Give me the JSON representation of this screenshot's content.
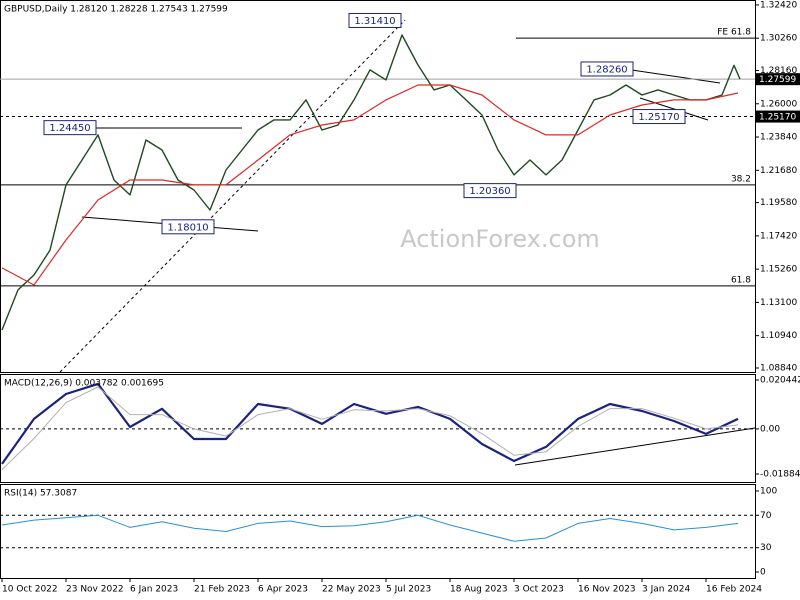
{
  "chart_data": [
    {
      "type": "line",
      "title": "GBPUSD,Daily  1.28120 1.28228 1.27543 1.27599",
      "watermark": "ActionForex.com",
      "xlim": [
        -1,
        376.5
      ],
      "ylim": [
        1.0858,
        1.3274
      ],
      "yticks": [
        {
          "value": 1.3242,
          "label": "1.32420"
        },
        {
          "value": 1.3026,
          "label": "1.30260"
        },
        {
          "value": 1.2816,
          "label": "1.28160"
        },
        {
          "value": 1.26,
          "label": "1.26000"
        },
        {
          "value": 1.2384,
          "label": "1.23840"
        },
        {
          "value": 1.2168,
          "label": "1.21680"
        },
        {
          "value": 1.1958,
          "label": "1.19580"
        },
        {
          "value": 1.1742,
          "label": "1.17420"
        },
        {
          "value": 1.1526,
          "label": "1.15260"
        },
        {
          "value": 1.131,
          "label": "1.13100"
        },
        {
          "value": 1.1094,
          "label": "1.10940"
        },
        {
          "value": 1.0884,
          "label": "1.08840"
        }
      ],
      "series": [
        {
          "color": "#1e4a22",
          "line_width": 1.4,
          "x": [
            0,
            8,
            16,
            24,
            32,
            40,
            48,
            56,
            64,
            72,
            80,
            88,
            96,
            104,
            112,
            120,
            128,
            136,
            144,
            152,
            160,
            168,
            176,
            184,
            192,
            200,
            208,
            216,
            224,
            232,
            240,
            248,
            256,
            264,
            272,
            280,
            288,
            296,
            304,
            312,
            320,
            328,
            336,
            344,
            352,
            360,
            366,
            369
          ],
          "values": [
            1.1131,
            1.1391,
            1.1488,
            1.165,
            1.2073,
            1.2235,
            1.2398,
            1.2105,
            1.2008,
            1.2365,
            1.23,
            1.2105,
            1.204,
            1.191,
            1.217,
            1.23,
            1.243,
            1.2495,
            1.2495,
            1.2625,
            1.243,
            1.2462,
            1.2625,
            1.282,
            1.2755,
            1.3047,
            1.2852,
            1.269,
            1.2722,
            1.2625,
            1.2527,
            1.23,
            1.2138,
            1.2235,
            1.2138,
            1.2235,
            1.243,
            1.2625,
            1.2657,
            1.2722,
            1.2657,
            1.269,
            1.2657,
            1.2625,
            1.2625,
            1.2657,
            1.285,
            1.276
          ]
        },
        {
          "color": "#e02828",
          "line_width": 1.2,
          "x": [
            0,
            16,
            32,
            48,
            64,
            80,
            96,
            112,
            128,
            144,
            160,
            176,
            192,
            208,
            224,
            240,
            256,
            272,
            288,
            304,
            320,
            336,
            352,
            368
          ],
          "values": [
            1.1534,
            1.1423,
            1.1715,
            1.1975,
            1.2105,
            1.2105,
            1.2073,
            1.2073,
            1.2235,
            1.2398,
            1.2462,
            1.2495,
            1.2625,
            1.2722,
            1.2722,
            1.2657,
            1.2495,
            1.2398,
            1.2398,
            1.2527,
            1.2592,
            1.2625,
            1.2625,
            1.267
          ]
        }
      ],
      "levels": [
        {
          "label": "FE 61.8",
          "value": 1.3026,
          "from": 257,
          "style": "solid",
          "color": "#000000"
        },
        {
          "label": "38.2",
          "value": 1.2073,
          "from": -1,
          "style": "solid",
          "color": "#000000"
        },
        {
          "label": "61.8",
          "value": 1.1417,
          "from": -1,
          "style": "solid",
          "color": "#000000"
        },
        {
          "value": 1.2517,
          "from": -1,
          "style": "dashed",
          "color": "#000000"
        },
        {
          "value": 1.27599,
          "from": -1,
          "style": "solid",
          "color": "#a0a0a0"
        }
      ],
      "price_labels": [
        {
          "label": "1.31410",
          "value": 1.3141,
          "x": 186.5
        },
        {
          "label": "1.24450",
          "value": 1.2445,
          "x": 34
        },
        {
          "label": "1.18010",
          "value": 1.1801,
          "x": 93
        },
        {
          "label": "1.20360",
          "value": 1.2036,
          "x": 244
        },
        {
          "label": "1.28260",
          "value": 1.2826,
          "x": 302.5
        },
        {
          "label": "1.25170",
          "value": 1.2517,
          "x": 328.5
        }
      ],
      "axis_marks": [
        {
          "value": 1.27599,
          "label": "1.27599"
        },
        {
          "value": 1.2517,
          "label": "1.25170"
        }
      ]
    },
    {
      "type": "line",
      "title": "MACD(12,26,9) 0.003782 0.001695",
      "xlim": [
        -1,
        376.5
      ],
      "ylim": [
        -0.02218,
        0.02295
      ],
      "yticks": [
        0.020442,
        {
          "value": 0,
          "label": "0.00"
        },
        -0.01884
      ],
      "series": [
        {
          "color": "#1a237e",
          "line_width": 2.2,
          "x": [
            0,
            16,
            32,
            48,
            64,
            80,
            96,
            112,
            128,
            144,
            160,
            176,
            192,
            208,
            224,
            240,
            256,
            272,
            288,
            304,
            320,
            336,
            352,
            368
          ],
          "values": [
            -0.0146,
            0.0042,
            0.0146,
            0.0188,
            0.0008,
            0.0084,
            -0.0042,
            -0.0042,
            0.0104,
            0.0084,
            0.0021,
            0.0104,
            0.0063,
            0.0092,
            0.0042,
            -0.0063,
            -0.0134,
            -0.0075,
            0.0042,
            0.0104,
            0.0075,
            0.0033,
            -0.0021,
            0.0042
          ]
        },
        {
          "color": "#b0b0b0",
          "line_width": 1,
          "x": [
            0,
            16,
            32,
            48,
            64,
            80,
            96,
            112,
            128,
            144,
            160,
            176,
            192,
            208,
            224,
            240,
            256,
            272,
            288,
            304,
            320,
            336,
            352,
            368
          ],
          "values": [
            -0.017,
            -0.004,
            0.011,
            0.0175,
            0.006,
            0.006,
            0,
            -0.003,
            0.006,
            0.0085,
            0.004,
            0.008,
            0.0075,
            0.0085,
            0.0055,
            -0.002,
            -0.011,
            -0.0095,
            0.001,
            0.0085,
            0.0085,
            0.0045,
            0,
            0.0017
          ]
        }
      ],
      "levels": [
        {
          "value": 0,
          "from": -1,
          "style": "dashed",
          "color": "#000000"
        }
      ]
    },
    {
      "type": "line",
      "title": "RSI(14) 57.3087",
      "xlim": [
        -1,
        376.5
      ],
      "ylim": [
        -7.4,
        108.6
      ],
      "yticks": [
        100,
        70,
        30,
        0
      ],
      "xticks": [
        {
          "value": 0,
          "label": "10 Oct 2022"
        },
        {
          "value": 32,
          "label": "23 Nov 2022"
        },
        {
          "value": 64,
          "label": "6 Jan 2023"
        },
        {
          "value": 96,
          "label": "21 Feb 2023"
        },
        {
          "value": 128,
          "label": "6 Apr 2023"
        },
        {
          "value": 160,
          "label": "22 May 2023"
        },
        {
          "value": 192,
          "label": "5 Jul 2023"
        },
        {
          "value": 224,
          "label": "18 Aug 2023"
        },
        {
          "value": 256,
          "label": "3 Oct 2023"
        },
        {
          "value": 288,
          "label": "16 Nov 2023"
        },
        {
          "value": 320,
          "label": "3 Jan 2024"
        },
        {
          "value": 352,
          "label": "16 Feb 2024"
        }
      ],
      "series": [
        {
          "color": "#2a8fd6",
          "line_width": 1,
          "x": [
            0,
            16,
            32,
            48,
            64,
            80,
            96,
            112,
            128,
            144,
            160,
            176,
            192,
            208,
            224,
            240,
            256,
            272,
            288,
            304,
            320,
            336,
            352,
            368
          ],
          "values": [
            58,
            64,
            67,
            70,
            55,
            62,
            54,
            50,
            60,
            63,
            56,
            57,
            62,
            70,
            58,
            48,
            38,
            42,
            60,
            66,
            60,
            52,
            55,
            60
          ]
        }
      ],
      "levels": [
        {
          "value": 70,
          "from": -1,
          "style": "dashed",
          "color": "#000000"
        },
        {
          "value": 30,
          "from": -1,
          "style": "dashed",
          "color": "#000000"
        }
      ]
    }
  ]
}
